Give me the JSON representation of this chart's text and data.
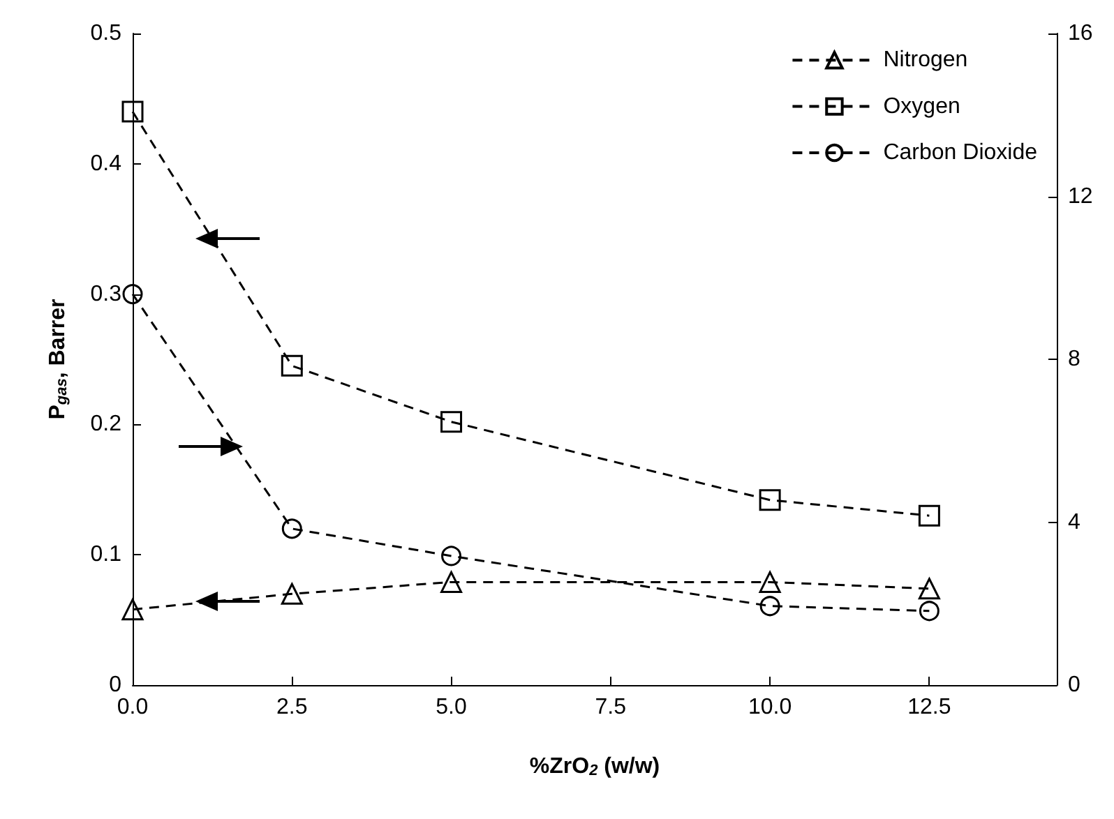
{
  "chart_data": {
    "type": "line",
    "xlabel": "%ZrO$_{2}$ (w/w)",
    "ylabel": "P$_{gas}$, Barrer",
    "x": [
      0,
      2.5,
      5,
      10,
      12.5
    ],
    "xlim": [
      0,
      14.5
    ],
    "xticks": [
      {
        "value": 0,
        "label": "0.0"
      },
      {
        "value": 2.5,
        "label": "2.5"
      },
      {
        "value": 5,
        "label": "5.0"
      },
      {
        "value": 7.5,
        "label": "7.5"
      },
      {
        "value": 10,
        "label": "10.0"
      },
      {
        "value": 12.5,
        "label": "12.5"
      }
    ],
    "ylim": [
      0,
      0.5
    ],
    "yticks": [
      0,
      0.1,
      0.2,
      0.3,
      0.4,
      0.5
    ],
    "y2lim": [
      0,
      16
    ],
    "y2ticks": [
      0,
      4,
      8,
      12,
      16
    ],
    "series": [
      {
        "name": "Nitrogen",
        "color": "#000000",
        "marker": "triangle",
        "values": [
          0.058,
          0.07,
          0.079,
          0.079,
          0.074
        ]
      },
      {
        "name": "Oxygen",
        "color": "#000000",
        "marker": "square",
        "values": [
          0.44,
          0.245,
          0.202,
          0.142,
          0.13
        ]
      },
      {
        "name": "Carbon Dioxide",
        "color": "#000000",
        "marker": "circle",
        "axis": "y2",
        "values": [
          9.6,
          3.84,
          3.17,
          1.94,
          1.82
        ]
      }
    ],
    "line_style": "dashed",
    "grid": false,
    "legend": "top right"
  }
}
